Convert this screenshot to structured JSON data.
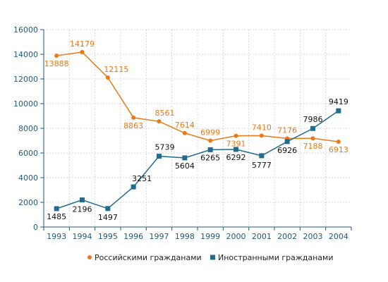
{
  "chart_data": {
    "type": "line",
    "categories": [
      "1993",
      "1994",
      "1995",
      "1996",
      "1997",
      "1998",
      "1999",
      "2000",
      "2001",
      "2002",
      "2003",
      "2004"
    ],
    "ylim": [
      0,
      16000
    ],
    "yticks": [
      0,
      2000,
      4000,
      6000,
      8000,
      10000,
      12000,
      14000,
      16000
    ],
    "grid": true,
    "legend_position": "bottom",
    "series": [
      {
        "name": "Российскими гражданами",
        "color": "#ea7a18",
        "marker": "circle",
        "values": [
          13888,
          14179,
          12115,
          8863,
          8561,
          7614,
          6999,
          7391,
          7410,
          7176,
          7188,
          6913
        ]
      },
      {
        "name": "Иностранными гражданами",
        "color": "#1f6c8f",
        "marker": "square",
        "values": [
          1485,
          2196,
          1497,
          3251,
          5739,
          5604,
          6265,
          6292,
          5777,
          6926,
          7986,
          9419
        ]
      }
    ]
  }
}
